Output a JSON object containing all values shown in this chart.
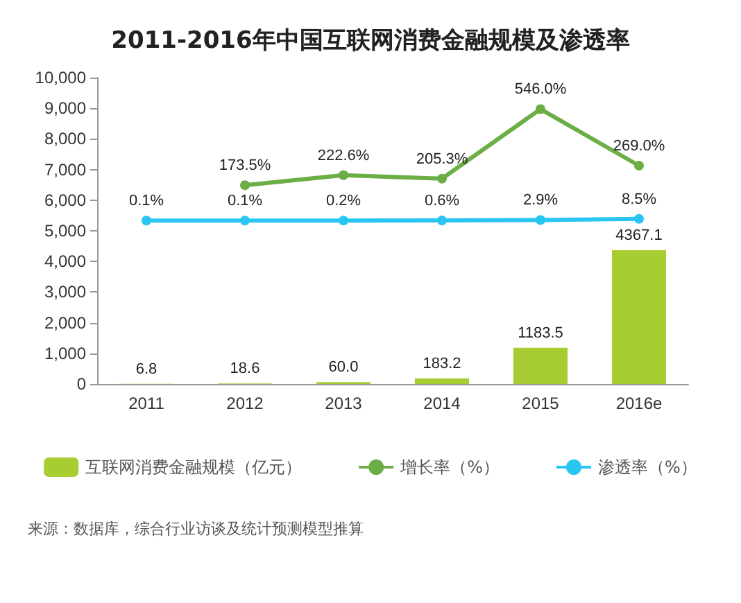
{
  "chart_data": {
    "type": "bar",
    "title": "2011-2016年中国互联网消费金融规模及渗透率",
    "categories": [
      "2011",
      "2012",
      "2013",
      "2014",
      "2015",
      "2016e"
    ],
    "series": [
      {
        "name": "互联网消费金融规模（亿元）",
        "color": "#a8cd32",
        "values": [
          6.8,
          18.6,
          60.0,
          183.2,
          1183.5,
          4367.1
        ],
        "value_labels": [
          "6.8",
          "18.6",
          "60.0",
          "183.2",
          "1183.5",
          "4367.1"
        ]
      },
      {
        "name": "增长率（%）",
        "type": "line",
        "axis": "y2",
        "color": "#6aae45",
        "values": [
          null,
          173.5,
          222.6,
          205.3,
          546.0,
          269.0
        ],
        "value_labels": [
          null,
          "173.5%",
          "222.6%",
          "205.3%",
          "546.0%",
          "269.0%"
        ]
      },
      {
        "name": "渗透率（%）",
        "type": "line",
        "axis": "y2",
        "color": "#2ac6f2",
        "values": [
          0.1,
          0.1,
          0.2,
          0.6,
          2.9,
          8.5
        ],
        "value_labels": [
          "0.1%",
          "0.1%",
          "0.2%",
          "0.6%",
          "2.9%",
          "8.5%"
        ]
      }
    ],
    "ylim": [
      0,
      10000
    ],
    "yticks": [
      {
        "value": 0,
        "label": "0"
      },
      {
        "value": 1000,
        "label": "1,000"
      },
      {
        "value": 2000,
        "label": "2,000"
      },
      {
        "value": 3000,
        "label": "3,000"
      },
      {
        "value": 4000,
        "label": "4,000"
      },
      {
        "value": 5000,
        "label": "5,000"
      },
      {
        "value": 6000,
        "label": "6,000"
      },
      {
        "value": 7000,
        "label": "7,000"
      },
      {
        "value": 8000,
        "label": "8,000"
      },
      {
        "value": 9000,
        "label": "9,000"
      },
      {
        "value": 10000,
        "label": "10,000"
      }
    ],
    "y2lim": [
      -800,
      700
    ],
    "grid": false,
    "legend": "bottom",
    "marker": "circle",
    "annotations": [
      "来源：数据库，综合行业访谈及统计预测模型推算"
    ]
  }
}
